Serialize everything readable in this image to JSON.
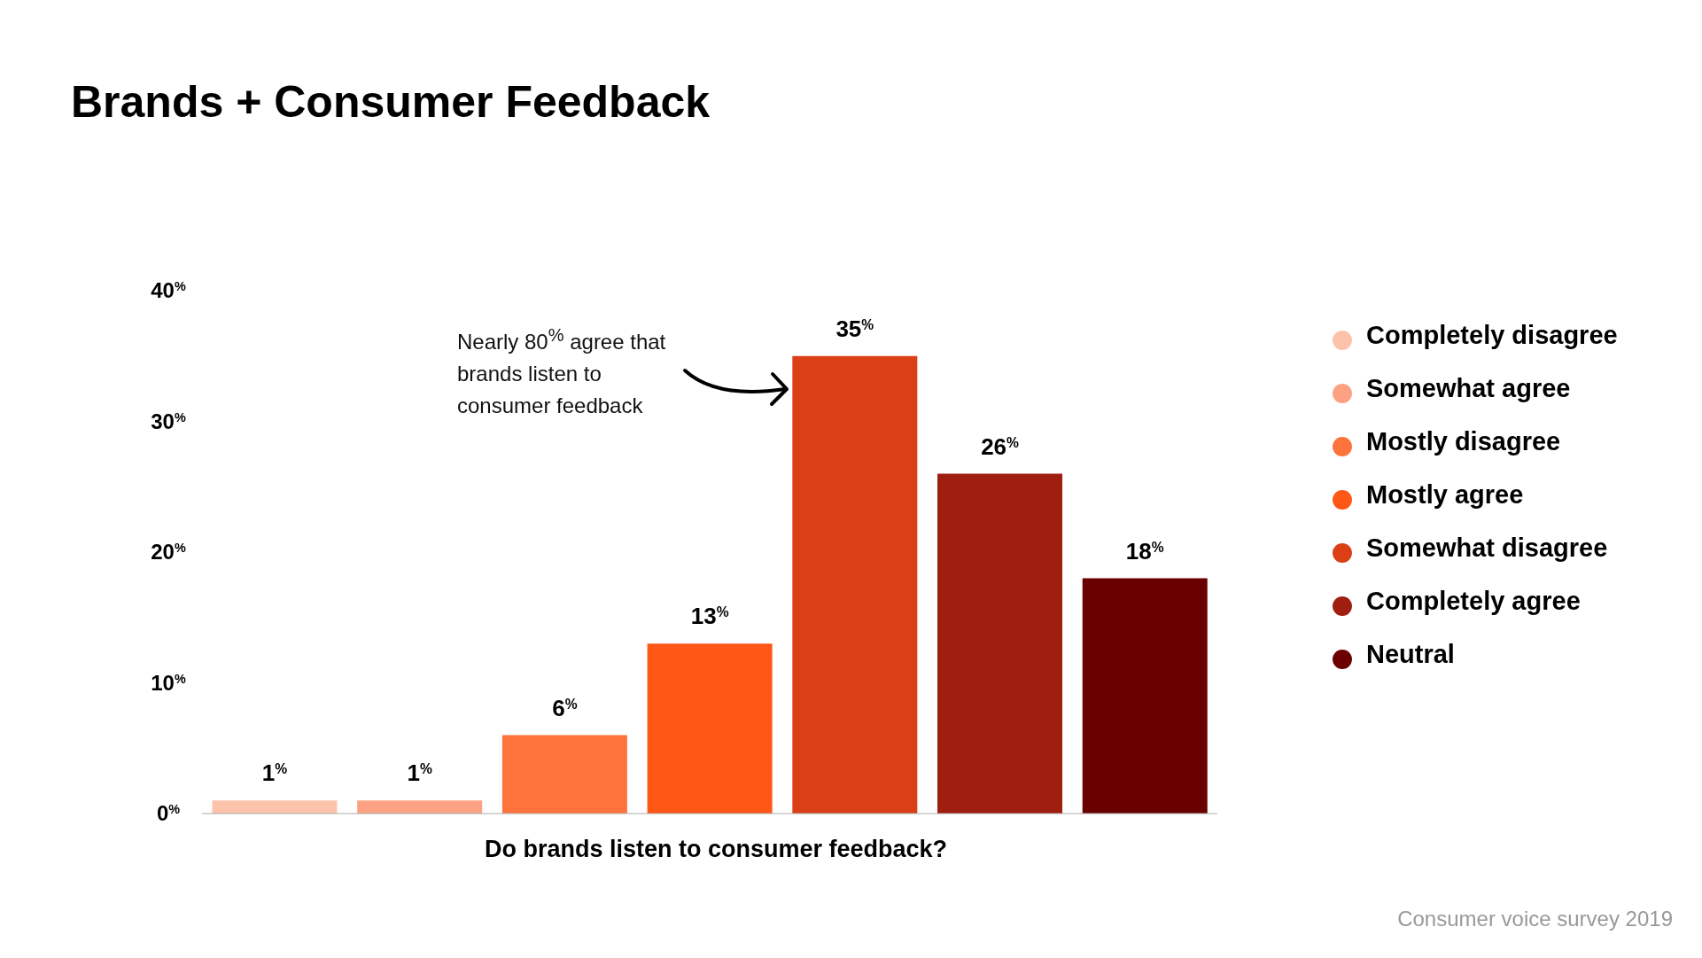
{
  "chart_data": {
    "type": "bar",
    "title": "Brands + Consumer Feedback",
    "xlabel": "Do brands listen to consumer feedback?",
    "categories": [
      null,
      null,
      null,
      null,
      null,
      null,
      null
    ],
    "stacked": true,
    "series": [
      {
        "name": "Completely disagree",
        "color": "#fdc3aa",
        "values": [
          1,
          null,
          null,
          null,
          null,
          null,
          null
        ],
        "value_labels": [
          "1$^{%}$",
          null,
          null,
          null,
          null,
          null,
          null
        ]
      },
      {
        "name": "Somewhat agree",
        "color": "#fca283",
        "values": [
          null,
          1,
          null,
          null,
          null,
          null,
          null
        ],
        "value_labels": [
          null,
          "1$^{%}$",
          null,
          null,
          null,
          null,
          null
        ]
      },
      {
        "name": "Mostly disagree",
        "color": "#fe733b",
        "values": [
          null,
          null,
          6,
          null,
          null,
          null,
          null
        ],
        "value_labels": [
          null,
          null,
          "6$^{%}$",
          null,
          null,
          null,
          null
        ]
      },
      {
        "name": "Mostly agree",
        "color": "#fe5716",
        "values": [
          null,
          null,
          null,
          13,
          null,
          null,
          null
        ],
        "value_labels": [
          null,
          null,
          null,
          "13$^{%}$",
          null,
          null,
          null
        ]
      },
      {
        "name": "Somewhat disagree",
        "color": "#da3f16",
        "values": [
          null,
          null,
          null,
          null,
          35,
          null,
          null
        ],
        "value_labels": [
          null,
          null,
          null,
          null,
          "35$^{%}$",
          null,
          null
        ]
      },
      {
        "name": "Completely agree",
        "color": "#9f1e0f",
        "values": [
          null,
          null,
          null,
          null,
          null,
          26,
          null
        ],
        "value_labels": [
          null,
          null,
          null,
          null,
          null,
          "26$^{%}$",
          null
        ]
      },
      {
        "name": "Neutral",
        "color": "#6a0000",
        "values": [
          null,
          null,
          null,
          null,
          null,
          null,
          18
        ],
        "value_labels": [
          null,
          null,
          null,
          null,
          null,
          null,
          "18$^{%}$"
        ]
      }
    ],
    "ylim": [
      0,
      40
    ],
    "yticks": [
      {
        "value": 0,
        "label": "0$^{%}$"
      },
      {
        "value": 10,
        "label": "10$^{%}$"
      },
      {
        "value": 20,
        "label": "20$^{%}$"
      },
      {
        "value": 30,
        "label": "30$^{%}$"
      },
      {
        "value": 40,
        "label": "40$^{%}$"
      }
    ],
    "tick_labels": "y",
    "grid": false,
    "legend": "right",
    "annotations": [
      "Nearly 80$^{%}$ agree that brands listen to consumer feedback",
      "Consumer voice survey 2019"
    ]
  }
}
